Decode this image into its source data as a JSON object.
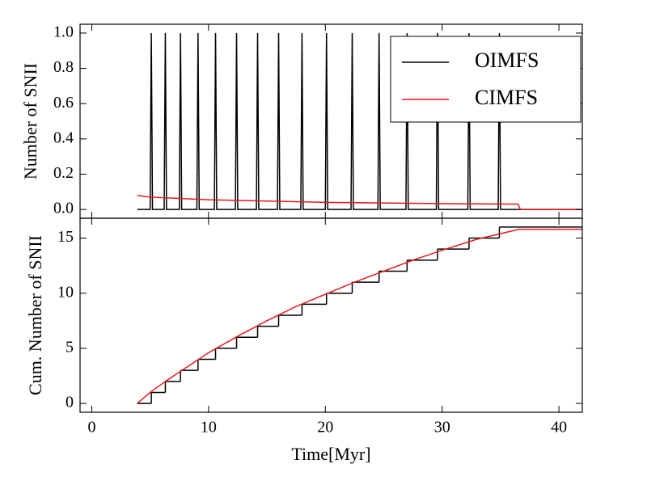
{
  "chart_data": [
    {
      "type": "line",
      "ylabel": "Number of SNII",
      "xlim": [
        -1,
        42
      ],
      "ylim": [
        -0.05,
        1.05
      ],
      "xticks": [
        0,
        10,
        20,
        30,
        40
      ],
      "yticks": [
        {
          "value": 0,
          "label": "0.0"
        },
        0.2,
        0.4,
        0.6,
        0.8,
        {
          "value": 1,
          "label": "1.0"
        }
      ],
      "legend": "upper right",
      "series": [
        {
          "name": "OIMFS",
          "color": "#000000",
          "x": [
            3.9,
            5.0,
            5.1,
            5.2,
            6.2,
            6.3,
            6.4,
            7.5,
            7.6,
            7.7,
            9.0,
            9.1,
            9.2,
            10.5,
            10.6,
            10.7,
            12.3,
            12.4,
            12.5,
            14.1,
            14.2,
            14.3,
            15.9,
            16.0,
            16.1,
            17.9,
            18.0,
            18.1,
            20.0,
            20.1,
            20.2,
            22.2,
            22.3,
            22.4,
            24.5,
            24.6,
            24.7,
            26.9,
            27.0,
            27.1,
            29.5,
            29.6,
            29.7,
            32.2,
            32.3,
            32.4,
            34.8,
            34.9,
            35.0,
            42
          ],
          "values": [
            0,
            0,
            1,
            0,
            0,
            1,
            0,
            0,
            1,
            0,
            0,
            1,
            0,
            0,
            1,
            0,
            0,
            1,
            0,
            0,
            1,
            0,
            0,
            1,
            0,
            0,
            1,
            0,
            0,
            1,
            0,
            0,
            1,
            0,
            0,
            1,
            0,
            0,
            1,
            0,
            0,
            1,
            0,
            0,
            1,
            0,
            0,
            1,
            0,
            0
          ]
        },
        {
          "name": "CIMFS",
          "color": "#e41a1c",
          "x": [
            3.9,
            5,
            10,
            20,
            30,
            36.5,
            36.7,
            42
          ],
          "values": [
            0.08,
            0.07,
            0.055,
            0.04,
            0.033,
            0.03,
            0,
            0
          ]
        }
      ]
    },
    {
      "type": "line",
      "xlabel": "Time[Myr]",
      "ylabel": "Cum. Number of SNII",
      "xlim": [
        -1,
        42
      ],
      "ylim": [
        -0.8,
        16.8
      ],
      "xticks": [
        0,
        10,
        20,
        30,
        40
      ],
      "yticks": [
        0,
        5,
        10,
        15
      ],
      "series": [
        {
          "color": "#000000",
          "step": "post",
          "x": [
            3.9,
            5.1,
            6.3,
            7.6,
            9.1,
            10.6,
            12.4,
            14.2,
            16.0,
            18.0,
            20.1,
            22.3,
            24.6,
            27.0,
            29.6,
            32.3,
            34.9
          ],
          "values": [
            0,
            1,
            2,
            3,
            4,
            5,
            6,
            7,
            8,
            9,
            10,
            11,
            12,
            13,
            14,
            15,
            16
          ]
        },
        {
          "color": "#e41a1c",
          "x": [
            3.9,
            5,
            6.3,
            8,
            10,
            12.5,
            15,
            17.5,
            20,
            22.5,
            25,
            27.5,
            30,
            33,
            36.6,
            42
          ],
          "values": [
            0,
            1.0,
            2.0,
            3.2,
            4.6,
            6.1,
            7.5,
            8.8,
            9.9,
            11,
            12,
            13,
            13.9,
            14.9,
            15.8,
            15.8
          ]
        }
      ]
    }
  ]
}
